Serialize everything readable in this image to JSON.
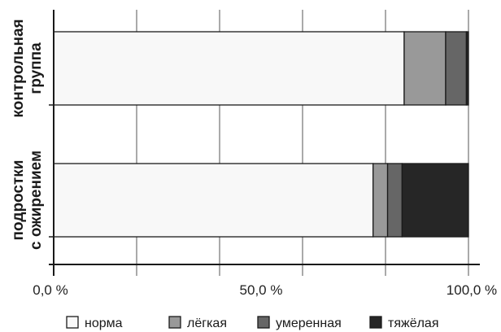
{
  "chart_data": {
    "type": "bar",
    "orientation": "horizontal",
    "stacked": true,
    "categories": [
      [
        "контрольная",
        "группа"
      ],
      [
        "подростки",
        "с ожирением"
      ]
    ],
    "series": [
      {
        "name": "норма",
        "color": "#f8f8f8",
        "values": [
          84.5,
          77.0
        ]
      },
      {
        "name": "лёгкая",
        "color": "#999999",
        "values": [
          10.0,
          3.5
        ]
      },
      {
        "name": "умеренная",
        "color": "#666666",
        "values": [
          5.0,
          3.5
        ]
      },
      {
        "name": "тяжёлая",
        "color": "#262626",
        "values": [
          0.5,
          16.0
        ]
      }
    ],
    "xlim": [
      0,
      100
    ],
    "x_ticks": [
      {
        "value": 0,
        "label": "0,0 %"
      },
      {
        "value": 50,
        "label": "50,0 %"
      },
      {
        "value": 100,
        "label": "100,0 %"
      }
    ],
    "grid": true,
    "legend_position": "bottom",
    "title": "",
    "xlabel": "",
    "ylabel": ""
  }
}
